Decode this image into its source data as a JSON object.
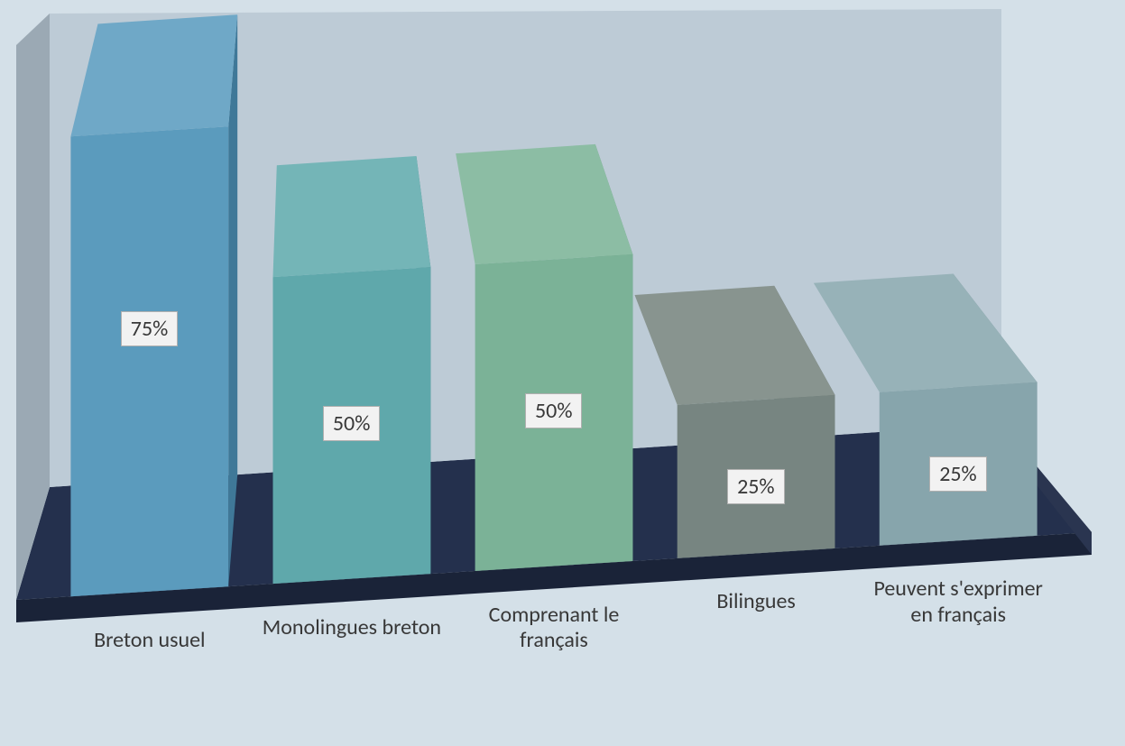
{
  "chart": {
    "type": "bar-3d",
    "background_color": "#d4e0e8",
    "floor_color_top": "#24304d",
    "floor_color_front": "#1a2338",
    "back_wall_color": "#bdcbd6",
    "side_wall_color": "#9ba9b4",
    "label_fontsize": 24,
    "data_label_fontsize": 24,
    "data_label_bg": "#f2f2f2",
    "data_label_border": "#b0b0b0",
    "bars": [
      {
        "category": "Breton usuel",
        "value_label": "75%",
        "value": 75,
        "face_color": "#5b9bbd",
        "top_color": "#6fa8c7",
        "side_color": "#3f7898"
      },
      {
        "category": "Monolingues breton",
        "value_label": "50%",
        "value": 50,
        "face_color": "#5fa8ab",
        "top_color": "#74b5b7",
        "side_color": "#478688"
      },
      {
        "category": "Comprenant le français",
        "value_label": "50%",
        "value": 50,
        "face_color": "#7bb297",
        "top_color": "#8cbda4",
        "side_color": "#5e9378"
      },
      {
        "category": "Bilingues",
        "value_label": "25%",
        "value": 25,
        "face_color": "#778581",
        "top_color": "#88948f",
        "side_color": "#5d6b67"
      },
      {
        "category": "Peuvent s'exprimer en français",
        "value_label": "25%",
        "value": 25,
        "face_color": "#87a5ac",
        "top_color": "#97b2b8",
        "side_color": "#6a888f"
      }
    ]
  }
}
